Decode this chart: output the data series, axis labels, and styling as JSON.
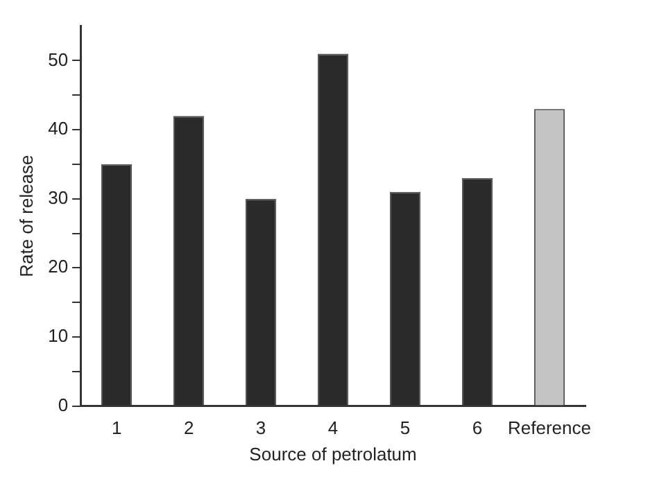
{
  "chart_data": {
    "type": "bar",
    "xlabel": "Source of petrolatum",
    "ylabel": "Rate of release",
    "categories": [
      "1",
      "2",
      "3",
      "4",
      "5",
      "6",
      "Reference"
    ],
    "values": [
      35,
      42,
      30,
      51,
      31,
      33,
      43
    ],
    "colors": [
      "#2b2b2b",
      "#2b2b2b",
      "#2b2b2b",
      "#2b2b2b",
      "#2b2b2b",
      "#2b2b2b",
      "#c4c4c4"
    ],
    "ylim": [
      0,
      55
    ],
    "yticks": [
      0,
      {
        "value": 5,
        "label": null
      },
      10,
      {
        "value": 15,
        "label": null
      },
      20,
      {
        "value": 25,
        "label": null
      },
      30,
      {
        "value": 35,
        "label": null
      },
      40,
      {
        "value": 45,
        "label": null
      },
      50
    ],
    "grid": false,
    "legend": false
  }
}
